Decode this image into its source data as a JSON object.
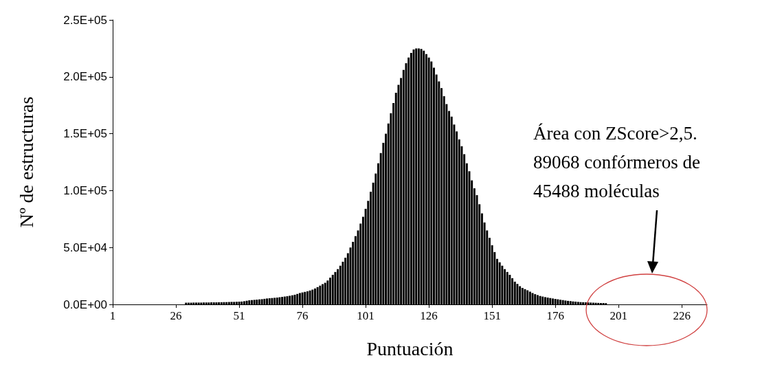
{
  "chart_data": {
    "type": "bar",
    "xlabel": "Puntuación",
    "ylabel": "Nº de estructuras",
    "annotations": [
      "Área con ZScore>2,5. 89068 confórmeros de 45488 moléculas"
    ],
    "x": [
      30,
      31,
      32,
      33,
      34,
      35,
      36,
      37,
      38,
      39,
      40,
      41,
      42,
      43,
      44,
      45,
      46,
      47,
      48,
      49,
      50,
      51,
      52,
      53,
      54,
      55,
      56,
      57,
      58,
      59,
      60,
      61,
      62,
      63,
      64,
      65,
      66,
      67,
      68,
      69,
      70,
      71,
      72,
      73,
      74,
      75,
      76,
      77,
      78,
      79,
      80,
      81,
      82,
      83,
      84,
      85,
      86,
      87,
      88,
      89,
      90,
      91,
      92,
      93,
      94,
      95,
      96,
      97,
      98,
      99,
      100,
      101,
      102,
      103,
      104,
      105,
      106,
      107,
      108,
      109,
      110,
      111,
      112,
      113,
      114,
      115,
      116,
      117,
      118,
      119,
      120,
      121,
      122,
      123,
      124,
      125,
      126,
      127,
      128,
      129,
      130,
      131,
      132,
      133,
      134,
      135,
      136,
      137,
      138,
      139,
      140,
      141,
      142,
      143,
      144,
      145,
      146,
      147,
      148,
      149,
      150,
      151,
      152,
      153,
      154,
      155,
      156,
      157,
      158,
      159,
      160,
      161,
      162,
      163,
      164,
      165,
      166,
      167,
      168,
      169,
      170,
      171,
      172,
      173,
      174,
      175,
      176,
      177,
      178,
      179,
      180,
      181,
      182,
      183,
      184,
      185,
      186,
      187,
      188,
      189,
      190,
      191,
      192,
      193,
      194,
      195,
      196
    ],
    "values": [
      1500,
      1500,
      1500,
      1600,
      1600,
      1600,
      1600,
      1700,
      1700,
      1700,
      1800,
      1800,
      1800,
      1900,
      1900,
      2000,
      2000,
      2100,
      2200,
      2200,
      2300,
      2400,
      2500,
      2800,
      3200,
      3600,
      3800,
      4000,
      4200,
      4400,
      4600,
      4900,
      5200,
      5400,
      5600,
      5800,
      6000,
      6300,
      6600,
      6900,
      7200,
      7600,
      8000,
      8500,
      9200,
      10000,
      10500,
      11000,
      11500,
      12200,
      13000,
      14000,
      15200,
      16500,
      17800,
      19000,
      21000,
      23500,
      26000,
      28500,
      31000,
      34000,
      37500,
      41000,
      45000,
      50000,
      55000,
      60000,
      65000,
      71000,
      77000,
      84000,
      91000,
      99000,
      107000,
      115000,
      124000,
      133000,
      142000,
      150000,
      159000,
      168000,
      177000,
      186000,
      193000,
      199000,
      206000,
      212000,
      217000,
      221000,
      224000,
      225000,
      225000,
      224500,
      223000,
      220000,
      217000,
      213500,
      208000,
      202000,
      196000,
      190000,
      183000,
      176000,
      170000,
      165000,
      158000,
      152000,
      145000,
      139000,
      132000,
      124000,
      117000,
      109000,
      102000,
      96000,
      88000,
      80000,
      72000,
      65000,
      58500,
      52000,
      46000,
      40000,
      37000,
      34000,
      31000,
      28500,
      26000,
      23000,
      20000,
      18000,
      16000,
      14500,
      13400,
      12400,
      11200,
      10000,
      9000,
      8200,
      7400,
      6900,
      6400,
      6000,
      5600,
      5200,
      4800,
      4500,
      4100,
      3800,
      3400,
      3100,
      2900,
      2600,
      2400,
      2200,
      2000,
      1900,
      1800,
      1700,
      1600,
      1500,
      1400,
      1300,
      1200,
      1200,
      1100
    ],
    "color": "#000000",
    "xlim": [
      1,
      236
    ],
    "xticks": [
      1,
      26,
      51,
      76,
      101,
      126,
      151,
      176,
      201,
      226
    ],
    "ylim": [
      0,
      250000
    ],
    "yticks": [
      {
        "value": 0,
        "label": "0.0E+00"
      },
      {
        "value": 50000,
        "label": "5.0E+04"
      },
      {
        "value": 100000,
        "label": "1.0E+05"
      },
      {
        "value": 150000,
        "label": "1.5E+05"
      },
      {
        "value": 200000,
        "label": "2.0E+05"
      },
      {
        "value": 250000,
        "label": "2.5E+05"
      }
    ],
    "grid": false
  }
}
